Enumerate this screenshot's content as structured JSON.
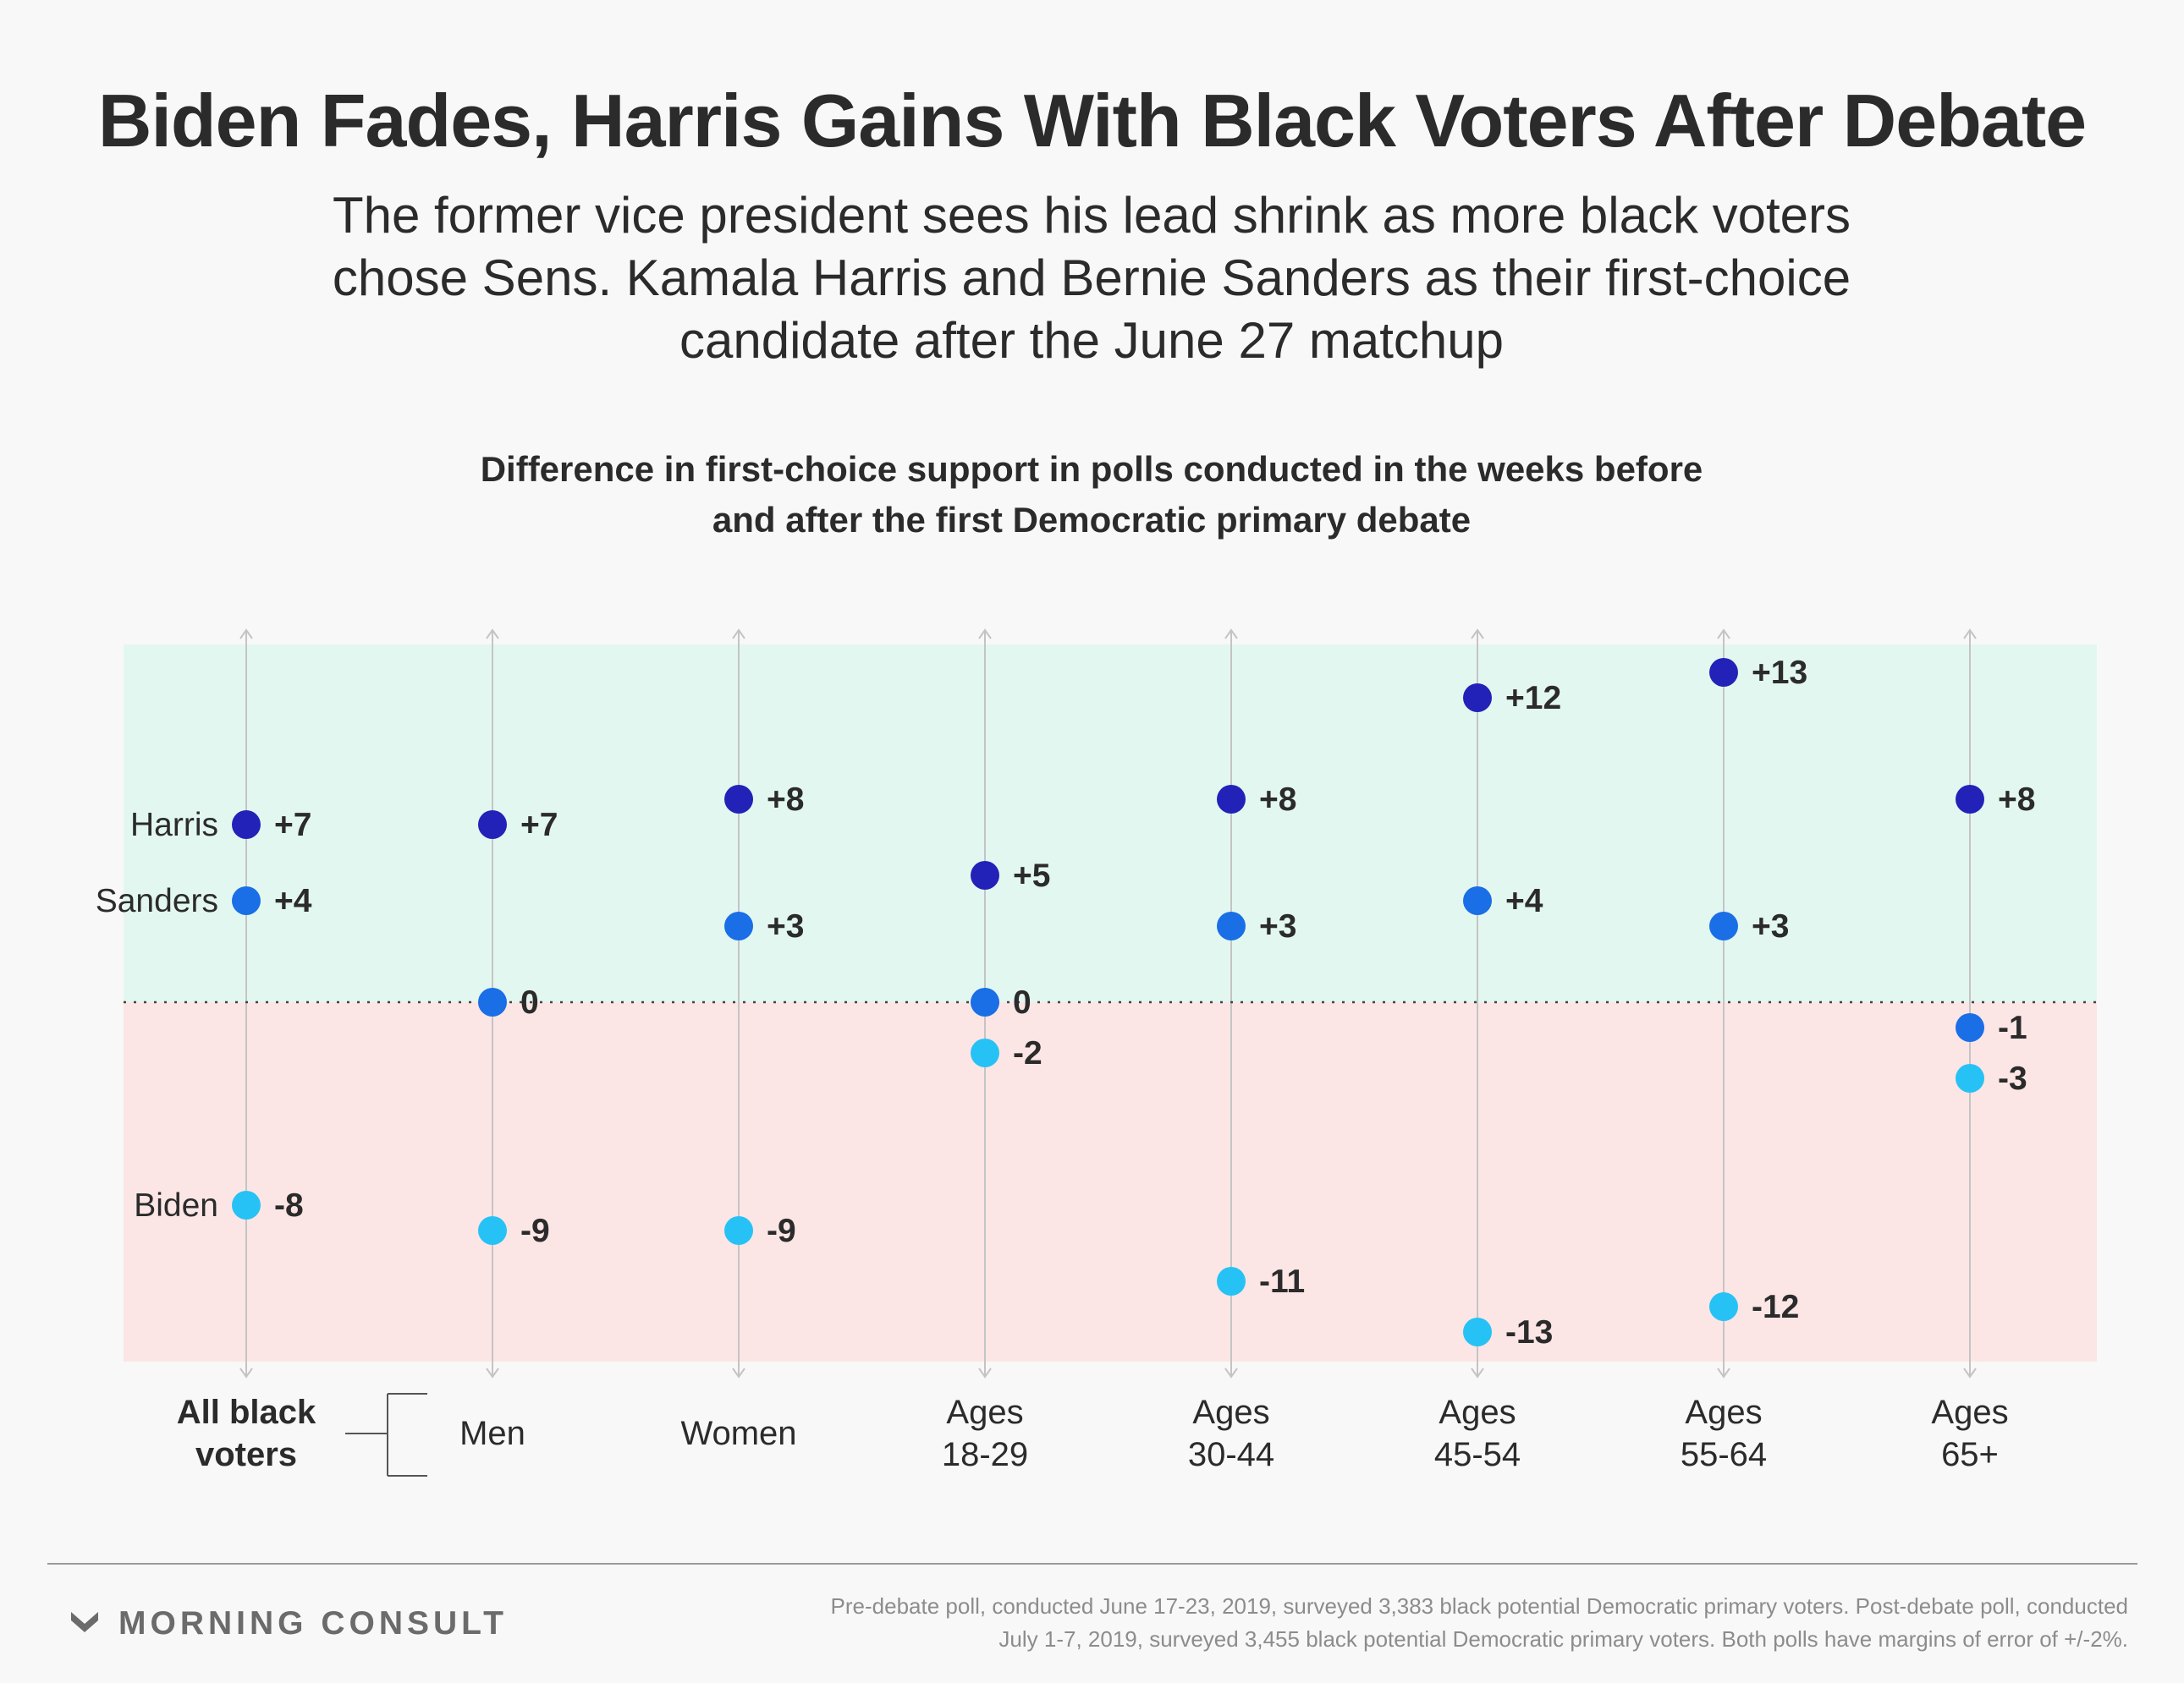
{
  "title": "Biden Fades, Harris Gains With Black Voters After Debate",
  "subtitle": "The former vice president sees his lead shrink as more black voters chose Sens. Kamala Harris and Bernie Sanders as their first-choice candidate after the June 27 matchup",
  "chart_data": {
    "type": "scatter",
    "title": "Difference in first-choice support in polls conducted in the weeks before and after the first Democratic primary debate",
    "categories": [
      [
        "All black",
        "voters"
      ],
      [
        "Men"
      ],
      [
        "Women"
      ],
      [
        "Ages",
        "18-29"
      ],
      [
        "Ages",
        "30-44"
      ],
      [
        "Ages",
        "45-54"
      ],
      [
        "Ages",
        "55-64"
      ],
      [
        "Ages",
        "65+"
      ]
    ],
    "series": [
      {
        "name": "Harris",
        "color": "#2222b8",
        "values": [
          7,
          7,
          8,
          5,
          8,
          12,
          13,
          8
        ],
        "labels": [
          "+7",
          "+7",
          "+8",
          "+5",
          "+8",
          "+12",
          "+13",
          "+8"
        ]
      },
      {
        "name": "Sanders",
        "color": "#1a6ee6",
        "values": [
          4,
          0,
          3,
          0,
          3,
          4,
          3,
          -1
        ],
        "labels": [
          "+4",
          "0",
          "+3",
          "0",
          "+3",
          "+4",
          "+3",
          "-1"
        ]
      },
      {
        "name": "Biden",
        "color": "#27c2f5",
        "values": [
          -8,
          -9,
          -9,
          -2,
          -11,
          -13,
          -12,
          -3
        ],
        "labels": [
          "-8",
          "-9",
          "-9",
          "-2",
          "-11",
          "-13",
          "-12",
          "-3"
        ]
      }
    ],
    "ylim": [
      -14,
      14
    ],
    "positive_band_color": "#e3f7f1",
    "negative_band_color": "#fbe6e5",
    "zero_line": "dotted"
  },
  "footer": {
    "logo_text": "MORNING CONSULT",
    "note_lines": [
      "Pre-debate poll, conducted June 17-23, 2019, surveyed 3,383 black potential Democratic primary voters. Post-debate poll, conducted",
      "July 1-7, 2019, surveyed 3,455 black potential Democratic primary voters. Both polls have margins of error of +/-2%."
    ]
  }
}
